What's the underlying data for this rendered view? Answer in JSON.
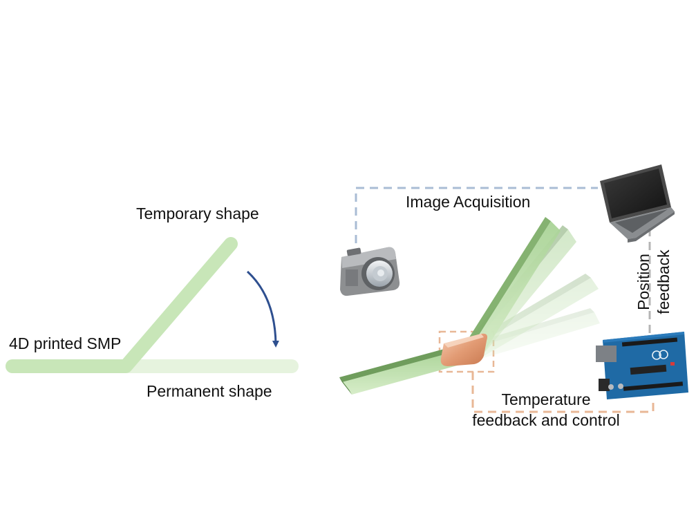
{
  "labels": {
    "temporary_shape": "Temporary shape",
    "printed_smp": "4D printed SMP",
    "permanent_shape": "Permanent shape",
    "image_acquisition": "Image Acquisition",
    "position_feedback_line1": "Position",
    "position_feedback_line2": "feedback",
    "temperature_line1": "Temperature",
    "temperature_line2": "feedback and control"
  },
  "colors": {
    "smp_green": "#c8e6b8",
    "smp_green_faint": "#e6f3de",
    "arrow_blue": "#2e4f8f",
    "beam_dark_green": "#7fae6a",
    "beam_light_green": "#b8dca8",
    "heater_copper": "#e8a683",
    "camera_line": "#a9bcd4",
    "position_line": "#b5b5b5",
    "temperature_line": "#e8b796",
    "arduino_blue": "#1f6aa5"
  },
  "icons": {
    "camera": "camera-icon",
    "laptop": "laptop-icon",
    "controller": "arduino-board-icon",
    "heater": "heater-pad-icon"
  }
}
